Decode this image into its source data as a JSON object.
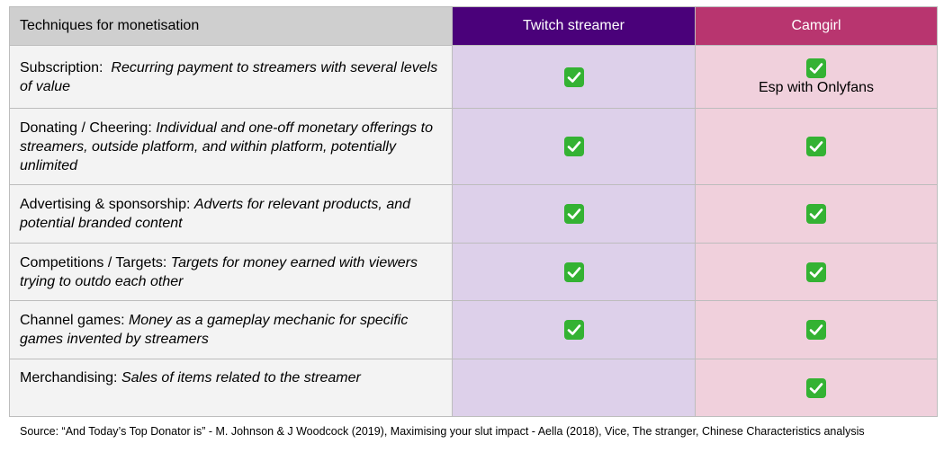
{
  "header": {
    "col_label": "Techniques for monetisation",
    "col_twitch": "Twitch streamer",
    "col_cam": "Camgirl"
  },
  "colors": {
    "twitch_header": "#4a017a",
    "cam_header": "#b8356f",
    "twitch_cell": "#ddd0ea",
    "cam_cell": "#f0d0dc",
    "check": "#34b233"
  },
  "rows": [
    {
      "name": "Subscription:",
      "desc": "Recurring payment to streamers with several levels of value",
      "twitch": true,
      "cam": true,
      "cam_note": "Esp with Onlyfans"
    },
    {
      "name": "Donating / Cheering:",
      "desc": "Individual and one-off monetary offerings to streamers, outside platform, and within platform, potentially unlimited",
      "twitch": true,
      "cam": true
    },
    {
      "name": "Advertising & sponsorship:",
      "desc": "Adverts for relevant products, and potential branded content",
      "twitch": true,
      "cam": true
    },
    {
      "name": "Competitions / Targets:",
      "desc": "Targets for money earned with viewers trying to outdo each other",
      "twitch": true,
      "cam": true
    },
    {
      "name": "Channel games:",
      "desc": "Money as a gameplay mechanic for specific games invented by streamers",
      "twitch": true,
      "cam": true
    },
    {
      "name": "Merchandising:",
      "desc": "Sales of items related to the streamer",
      "twitch": false,
      "cam": true
    }
  ],
  "icons": {
    "check": "check-mark-icon"
  },
  "source": "Source: “And Today’s Top Donator is” - M. Johnson & J Woodcock (2019), Maximising your slut impact - Aella (2018), Vice, The stranger, Chinese Characteristics analysis"
}
